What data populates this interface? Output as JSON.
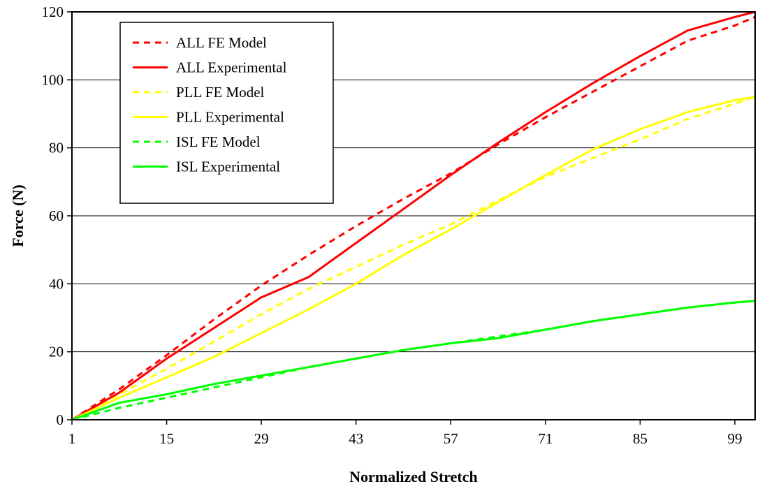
{
  "chart_data": {
    "type": "line",
    "title": "",
    "xlabel": "Normalized Stretch",
    "ylabel": "Force (N)",
    "xlim": [
      1,
      102
    ],
    "ylim": [
      0,
      120
    ],
    "x_ticks": [
      "1",
      "15",
      "29",
      "43",
      "57",
      "71",
      "85",
      "99"
    ],
    "y_ticks": [
      "0",
      "20",
      "40",
      "60",
      "80",
      "100",
      "120"
    ],
    "grid": "horizontal",
    "legend_position": "top-left",
    "series": [
      {
        "name": "ALL FE Model",
        "color": "#ff0000",
        "dash": "dashed",
        "x": [
          1,
          8,
          15,
          22,
          29,
          36,
          43,
          50,
          57,
          64,
          71,
          78,
          85,
          92,
          99,
          102
        ],
        "values": [
          0,
          9,
          19,
          29.5,
          39.5,
          48.5,
          57,
          65,
          72.5,
          81,
          89,
          96.5,
          104,
          111.5,
          116,
          118.5
        ]
      },
      {
        "name": "ALL Experimental",
        "color": "#ff0000",
        "dash": "solid",
        "x": [
          1,
          8,
          15,
          22,
          29,
          36,
          43,
          50,
          57,
          64,
          71,
          78,
          85,
          92,
          99,
          102
        ],
        "values": [
          0,
          8,
          18,
          27,
          36,
          42,
          52,
          62,
          72,
          81.5,
          90.5,
          99,
          107,
          114.5,
          118.5,
          120
        ]
      },
      {
        "name": "PLL FE Model",
        "color": "#ffff00",
        "dash": "dashed",
        "x": [
          1,
          8,
          15,
          22,
          29,
          36,
          43,
          50,
          57,
          64,
          71,
          78,
          85,
          92,
          99,
          102
        ],
        "values": [
          0,
          7.5,
          15,
          23,
          31,
          38.5,
          45,
          51.5,
          57.5,
          64.5,
          71.5,
          77,
          82.5,
          88.5,
          93,
          95
        ]
      },
      {
        "name": "PLL Experimental",
        "color": "#ffff00",
        "dash": "solid",
        "x": [
          1,
          8,
          15,
          22,
          29,
          36,
          43,
          50,
          57,
          64,
          71,
          78,
          85,
          92,
          99,
          102
        ],
        "values": [
          0,
          6.5,
          12.5,
          18.5,
          25.5,
          32.5,
          40,
          48.5,
          56,
          64,
          72,
          79.5,
          85.5,
          90.5,
          94,
          95
        ]
      },
      {
        "name": "ISL FE Model",
        "color": "#00ff00",
        "dash": "dashed",
        "x": [
          1,
          8,
          15,
          22,
          29,
          36,
          43,
          50,
          57,
          64,
          71,
          78,
          85,
          92,
          99,
          102
        ],
        "values": [
          0,
          3.5,
          6.5,
          9.5,
          12.5,
          15.5,
          18,
          20.5,
          22.5,
          24.5,
          26.5,
          29,
          31,
          33,
          34.5,
          35
        ]
      },
      {
        "name": "ISL Experimental",
        "color": "#00ff00",
        "dash": "solid",
        "x": [
          1,
          8,
          15,
          22,
          29,
          36,
          43,
          50,
          57,
          64,
          71,
          78,
          85,
          92,
          99,
          102
        ],
        "values": [
          0,
          5,
          7.5,
          10.5,
          13,
          15.5,
          18,
          20.5,
          22.5,
          24,
          26.5,
          29,
          31,
          33,
          34.5,
          35
        ]
      }
    ]
  }
}
